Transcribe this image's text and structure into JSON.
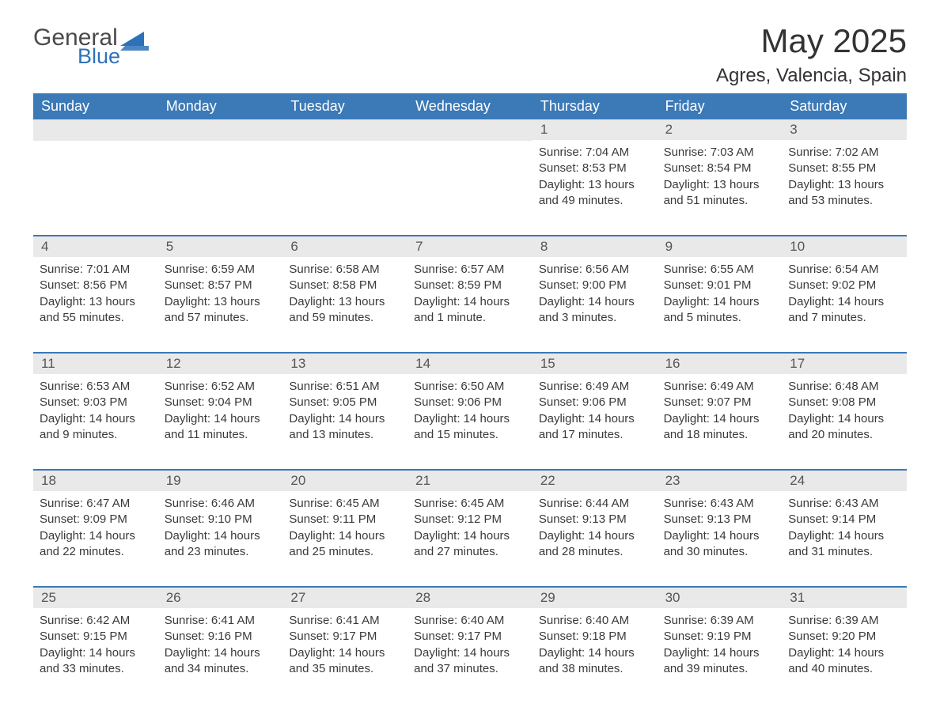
{
  "logo": {
    "word1": "General",
    "word2": "Blue",
    "shape_color": "#2d72b8",
    "word1_color": "#4a4a4a",
    "word2_color": "#2d72b8"
  },
  "title": "May 2025",
  "location": "Agres, Valencia, Spain",
  "colors": {
    "header_bg": "#3b79b7",
    "header_text": "#ffffff",
    "daynum_bg": "#e9e9e9",
    "rule": "#3b79b7",
    "body_text": "#3a3a3a",
    "page_bg": "#ffffff"
  },
  "day_names": [
    "Sunday",
    "Monday",
    "Tuesday",
    "Wednesday",
    "Thursday",
    "Friday",
    "Saturday"
  ],
  "weeks": [
    [
      null,
      null,
      null,
      null,
      {
        "n": "1",
        "sunrise": "7:04 AM",
        "sunset": "8:53 PM",
        "daylight": "13 hours and 49 minutes."
      },
      {
        "n": "2",
        "sunrise": "7:03 AM",
        "sunset": "8:54 PM",
        "daylight": "13 hours and 51 minutes."
      },
      {
        "n": "3",
        "sunrise": "7:02 AM",
        "sunset": "8:55 PM",
        "daylight": "13 hours and 53 minutes."
      }
    ],
    [
      {
        "n": "4",
        "sunrise": "7:01 AM",
        "sunset": "8:56 PM",
        "daylight": "13 hours and 55 minutes."
      },
      {
        "n": "5",
        "sunrise": "6:59 AM",
        "sunset": "8:57 PM",
        "daylight": "13 hours and 57 minutes."
      },
      {
        "n": "6",
        "sunrise": "6:58 AM",
        "sunset": "8:58 PM",
        "daylight": "13 hours and 59 minutes."
      },
      {
        "n": "7",
        "sunrise": "6:57 AM",
        "sunset": "8:59 PM",
        "daylight": "14 hours and 1 minute."
      },
      {
        "n": "8",
        "sunrise": "6:56 AM",
        "sunset": "9:00 PM",
        "daylight": "14 hours and 3 minutes."
      },
      {
        "n": "9",
        "sunrise": "6:55 AM",
        "sunset": "9:01 PM",
        "daylight": "14 hours and 5 minutes."
      },
      {
        "n": "10",
        "sunrise": "6:54 AM",
        "sunset": "9:02 PM",
        "daylight": "14 hours and 7 minutes."
      }
    ],
    [
      {
        "n": "11",
        "sunrise": "6:53 AM",
        "sunset": "9:03 PM",
        "daylight": "14 hours and 9 minutes."
      },
      {
        "n": "12",
        "sunrise": "6:52 AM",
        "sunset": "9:04 PM",
        "daylight": "14 hours and 11 minutes."
      },
      {
        "n": "13",
        "sunrise": "6:51 AM",
        "sunset": "9:05 PM",
        "daylight": "14 hours and 13 minutes."
      },
      {
        "n": "14",
        "sunrise": "6:50 AM",
        "sunset": "9:06 PM",
        "daylight": "14 hours and 15 minutes."
      },
      {
        "n": "15",
        "sunrise": "6:49 AM",
        "sunset": "9:06 PM",
        "daylight": "14 hours and 17 minutes."
      },
      {
        "n": "16",
        "sunrise": "6:49 AM",
        "sunset": "9:07 PM",
        "daylight": "14 hours and 18 minutes."
      },
      {
        "n": "17",
        "sunrise": "6:48 AM",
        "sunset": "9:08 PM",
        "daylight": "14 hours and 20 minutes."
      }
    ],
    [
      {
        "n": "18",
        "sunrise": "6:47 AM",
        "sunset": "9:09 PM",
        "daylight": "14 hours and 22 minutes."
      },
      {
        "n": "19",
        "sunrise": "6:46 AM",
        "sunset": "9:10 PM",
        "daylight": "14 hours and 23 minutes."
      },
      {
        "n": "20",
        "sunrise": "6:45 AM",
        "sunset": "9:11 PM",
        "daylight": "14 hours and 25 minutes."
      },
      {
        "n": "21",
        "sunrise": "6:45 AM",
        "sunset": "9:12 PM",
        "daylight": "14 hours and 27 minutes."
      },
      {
        "n": "22",
        "sunrise": "6:44 AM",
        "sunset": "9:13 PM",
        "daylight": "14 hours and 28 minutes."
      },
      {
        "n": "23",
        "sunrise": "6:43 AM",
        "sunset": "9:13 PM",
        "daylight": "14 hours and 30 minutes."
      },
      {
        "n": "24",
        "sunrise": "6:43 AM",
        "sunset": "9:14 PM",
        "daylight": "14 hours and 31 minutes."
      }
    ],
    [
      {
        "n": "25",
        "sunrise": "6:42 AM",
        "sunset": "9:15 PM",
        "daylight": "14 hours and 33 minutes."
      },
      {
        "n": "26",
        "sunrise": "6:41 AM",
        "sunset": "9:16 PM",
        "daylight": "14 hours and 34 minutes."
      },
      {
        "n": "27",
        "sunrise": "6:41 AM",
        "sunset": "9:17 PM",
        "daylight": "14 hours and 35 minutes."
      },
      {
        "n": "28",
        "sunrise": "6:40 AM",
        "sunset": "9:17 PM",
        "daylight": "14 hours and 37 minutes."
      },
      {
        "n": "29",
        "sunrise": "6:40 AM",
        "sunset": "9:18 PM",
        "daylight": "14 hours and 38 minutes."
      },
      {
        "n": "30",
        "sunrise": "6:39 AM",
        "sunset": "9:19 PM",
        "daylight": "14 hours and 39 minutes."
      },
      {
        "n": "31",
        "sunrise": "6:39 AM",
        "sunset": "9:20 PM",
        "daylight": "14 hours and 40 minutes."
      }
    ]
  ],
  "labels": {
    "sunrise": "Sunrise:",
    "sunset": "Sunset:",
    "daylight": "Daylight:"
  }
}
